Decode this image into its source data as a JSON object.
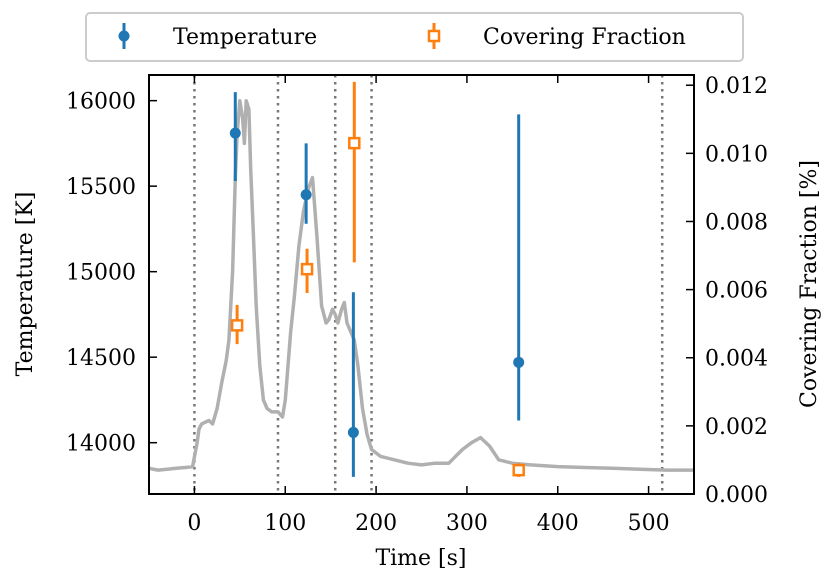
{
  "chart_data": {
    "type": "scatter",
    "title": "",
    "xlabel": "Time [s]",
    "ylabel_left": "Temperature [K]",
    "ylabel_right": "Covering Fraction [%]",
    "xlim": [
      -50,
      550
    ],
    "ylim_left": [
      13700,
      16150
    ],
    "ylim_right": [
      0.0,
      0.0123
    ],
    "xticks": [
      0,
      100,
      200,
      300,
      400,
      500
    ],
    "xtick_labels": [
      "0",
      "100",
      "200",
      "300",
      "400",
      "500"
    ],
    "yticks_left": [
      14000,
      14500,
      15000,
      15500,
      16000
    ],
    "ytick_labels_left": [
      "14000",
      "14500",
      "15000",
      "15500",
      "16000"
    ],
    "yticks_right": [
      0.0,
      0.002,
      0.004,
      0.006,
      0.008,
      0.01,
      0.012
    ],
    "ytick_labels_right": [
      "0.000",
      "0.002",
      "0.004",
      "0.006",
      "0.008",
      "0.010",
      "0.012"
    ],
    "vlines": [
      0,
      92,
      155,
      195,
      515
    ],
    "legend": {
      "position": "top-center",
      "entries": [
        {
          "label": "Temperature",
          "marker": "filled-circle",
          "color": "#1f77b4"
        },
        {
          "label": "Covering Fraction",
          "marker": "open-square",
          "color": "#ff7f0e"
        }
      ]
    },
    "series": [
      {
        "name": "Temperature",
        "axis": "left",
        "color": "#1f77b4",
        "marker": "filled-circle",
        "points": [
          {
            "x": 45,
            "y": 15810,
            "err_low": 15530,
            "err_high": 16050
          },
          {
            "x": 123,
            "y": 15450,
            "err_low": 15280,
            "err_high": 15750
          },
          {
            "x": 175,
            "y": 14060,
            "err_low": 13800,
            "err_high": 14880
          },
          {
            "x": 357,
            "y": 14470,
            "err_low": 14130,
            "err_high": 15920
          }
        ]
      },
      {
        "name": "Covering Fraction",
        "axis": "right",
        "color": "#ff7f0e",
        "marker": "open-square",
        "points": [
          {
            "x": 47,
            "y": 0.00495,
            "err_low": 0.0044,
            "err_high": 0.00555
          },
          {
            "x": 124,
            "y": 0.0066,
            "err_low": 0.0059,
            "err_high": 0.0072
          },
          {
            "x": 176,
            "y": 0.0103,
            "err_low": 0.0068,
            "err_high": 0.0121
          },
          {
            "x": 357,
            "y": 0.0007,
            "err_low": 0.0005,
            "err_high": 0.0009
          }
        ]
      },
      {
        "name": "light curve",
        "axis": "left",
        "color": "#b0b0b0",
        "style": "line",
        "x": [
          -50,
          -40,
          -30,
          -20,
          -10,
          -2,
          3,
          5,
          8,
          12,
          16,
          20,
          25,
          30,
          35,
          38,
          42,
          45,
          47,
          50,
          53,
          55,
          57,
          60,
          62,
          65,
          68,
          72,
          76,
          80,
          85,
          92,
          97,
          100,
          103,
          106,
          110,
          115,
          120,
          125,
          130,
          135,
          140,
          145,
          148,
          152,
          155,
          158,
          162,
          165,
          168,
          172,
          176,
          180,
          185,
          190,
          195,
          205,
          220,
          235,
          250,
          265,
          280,
          295,
          305,
          315,
          325,
          335,
          350,
          370,
          400,
          430,
          460,
          490,
          520,
          550
        ],
        "y": [
          13850,
          13840,
          13845,
          13850,
          13855,
          13860,
          14000,
          14080,
          14110,
          14120,
          14130,
          14110,
          14200,
          14350,
          14480,
          14600,
          15000,
          15550,
          15800,
          16000,
          15900,
          15750,
          16000,
          15950,
          15600,
          15200,
          14800,
          14450,
          14250,
          14200,
          14180,
          14180,
          14150,
          14250,
          14450,
          14650,
          14850,
          15150,
          15350,
          15480,
          15550,
          15200,
          14800,
          14700,
          14720,
          14780,
          14750,
          14700,
          14780,
          14820,
          14700,
          14650,
          14600,
          14450,
          14200,
          14050,
          13960,
          13920,
          13900,
          13880,
          13870,
          13880,
          13880,
          13960,
          14000,
          14030,
          13980,
          13900,
          13880,
          13870,
          13860,
          13855,
          13850,
          13845,
          13840,
          13840
        ]
      }
    ]
  }
}
